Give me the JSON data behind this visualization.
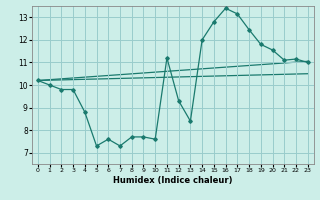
{
  "xlabel": "Humidex (Indice chaleur)",
  "background_color": "#cceee8",
  "grid_color": "#99cccc",
  "line_color": "#1a7a6e",
  "xlim": [
    -0.5,
    23.5
  ],
  "ylim": [
    6.5,
    13.5
  ],
  "xticks": [
    0,
    1,
    2,
    3,
    4,
    5,
    6,
    7,
    8,
    9,
    10,
    11,
    12,
    13,
    14,
    15,
    16,
    17,
    18,
    19,
    20,
    21,
    22,
    23
  ],
  "yticks": [
    7,
    8,
    9,
    10,
    11,
    12,
    13
  ],
  "line1_x": [
    0,
    1,
    2,
    3,
    4,
    5,
    6,
    7,
    8,
    9,
    10,
    11,
    12,
    13,
    14,
    15,
    16,
    17,
    18,
    19,
    20,
    21,
    22,
    23
  ],
  "line1_y": [
    10.2,
    10.0,
    9.8,
    9.8,
    8.8,
    7.3,
    7.6,
    7.3,
    7.7,
    7.7,
    7.6,
    11.2,
    9.3,
    8.4,
    12.0,
    12.8,
    13.4,
    13.15,
    12.45,
    11.8,
    11.55,
    11.1,
    11.15,
    11.0
  ],
  "line2_x": [
    0,
    23
  ],
  "line2_y": [
    10.2,
    11.05
  ],
  "line3_x": [
    0,
    23
  ],
  "line3_y": [
    10.2,
    10.5
  ]
}
